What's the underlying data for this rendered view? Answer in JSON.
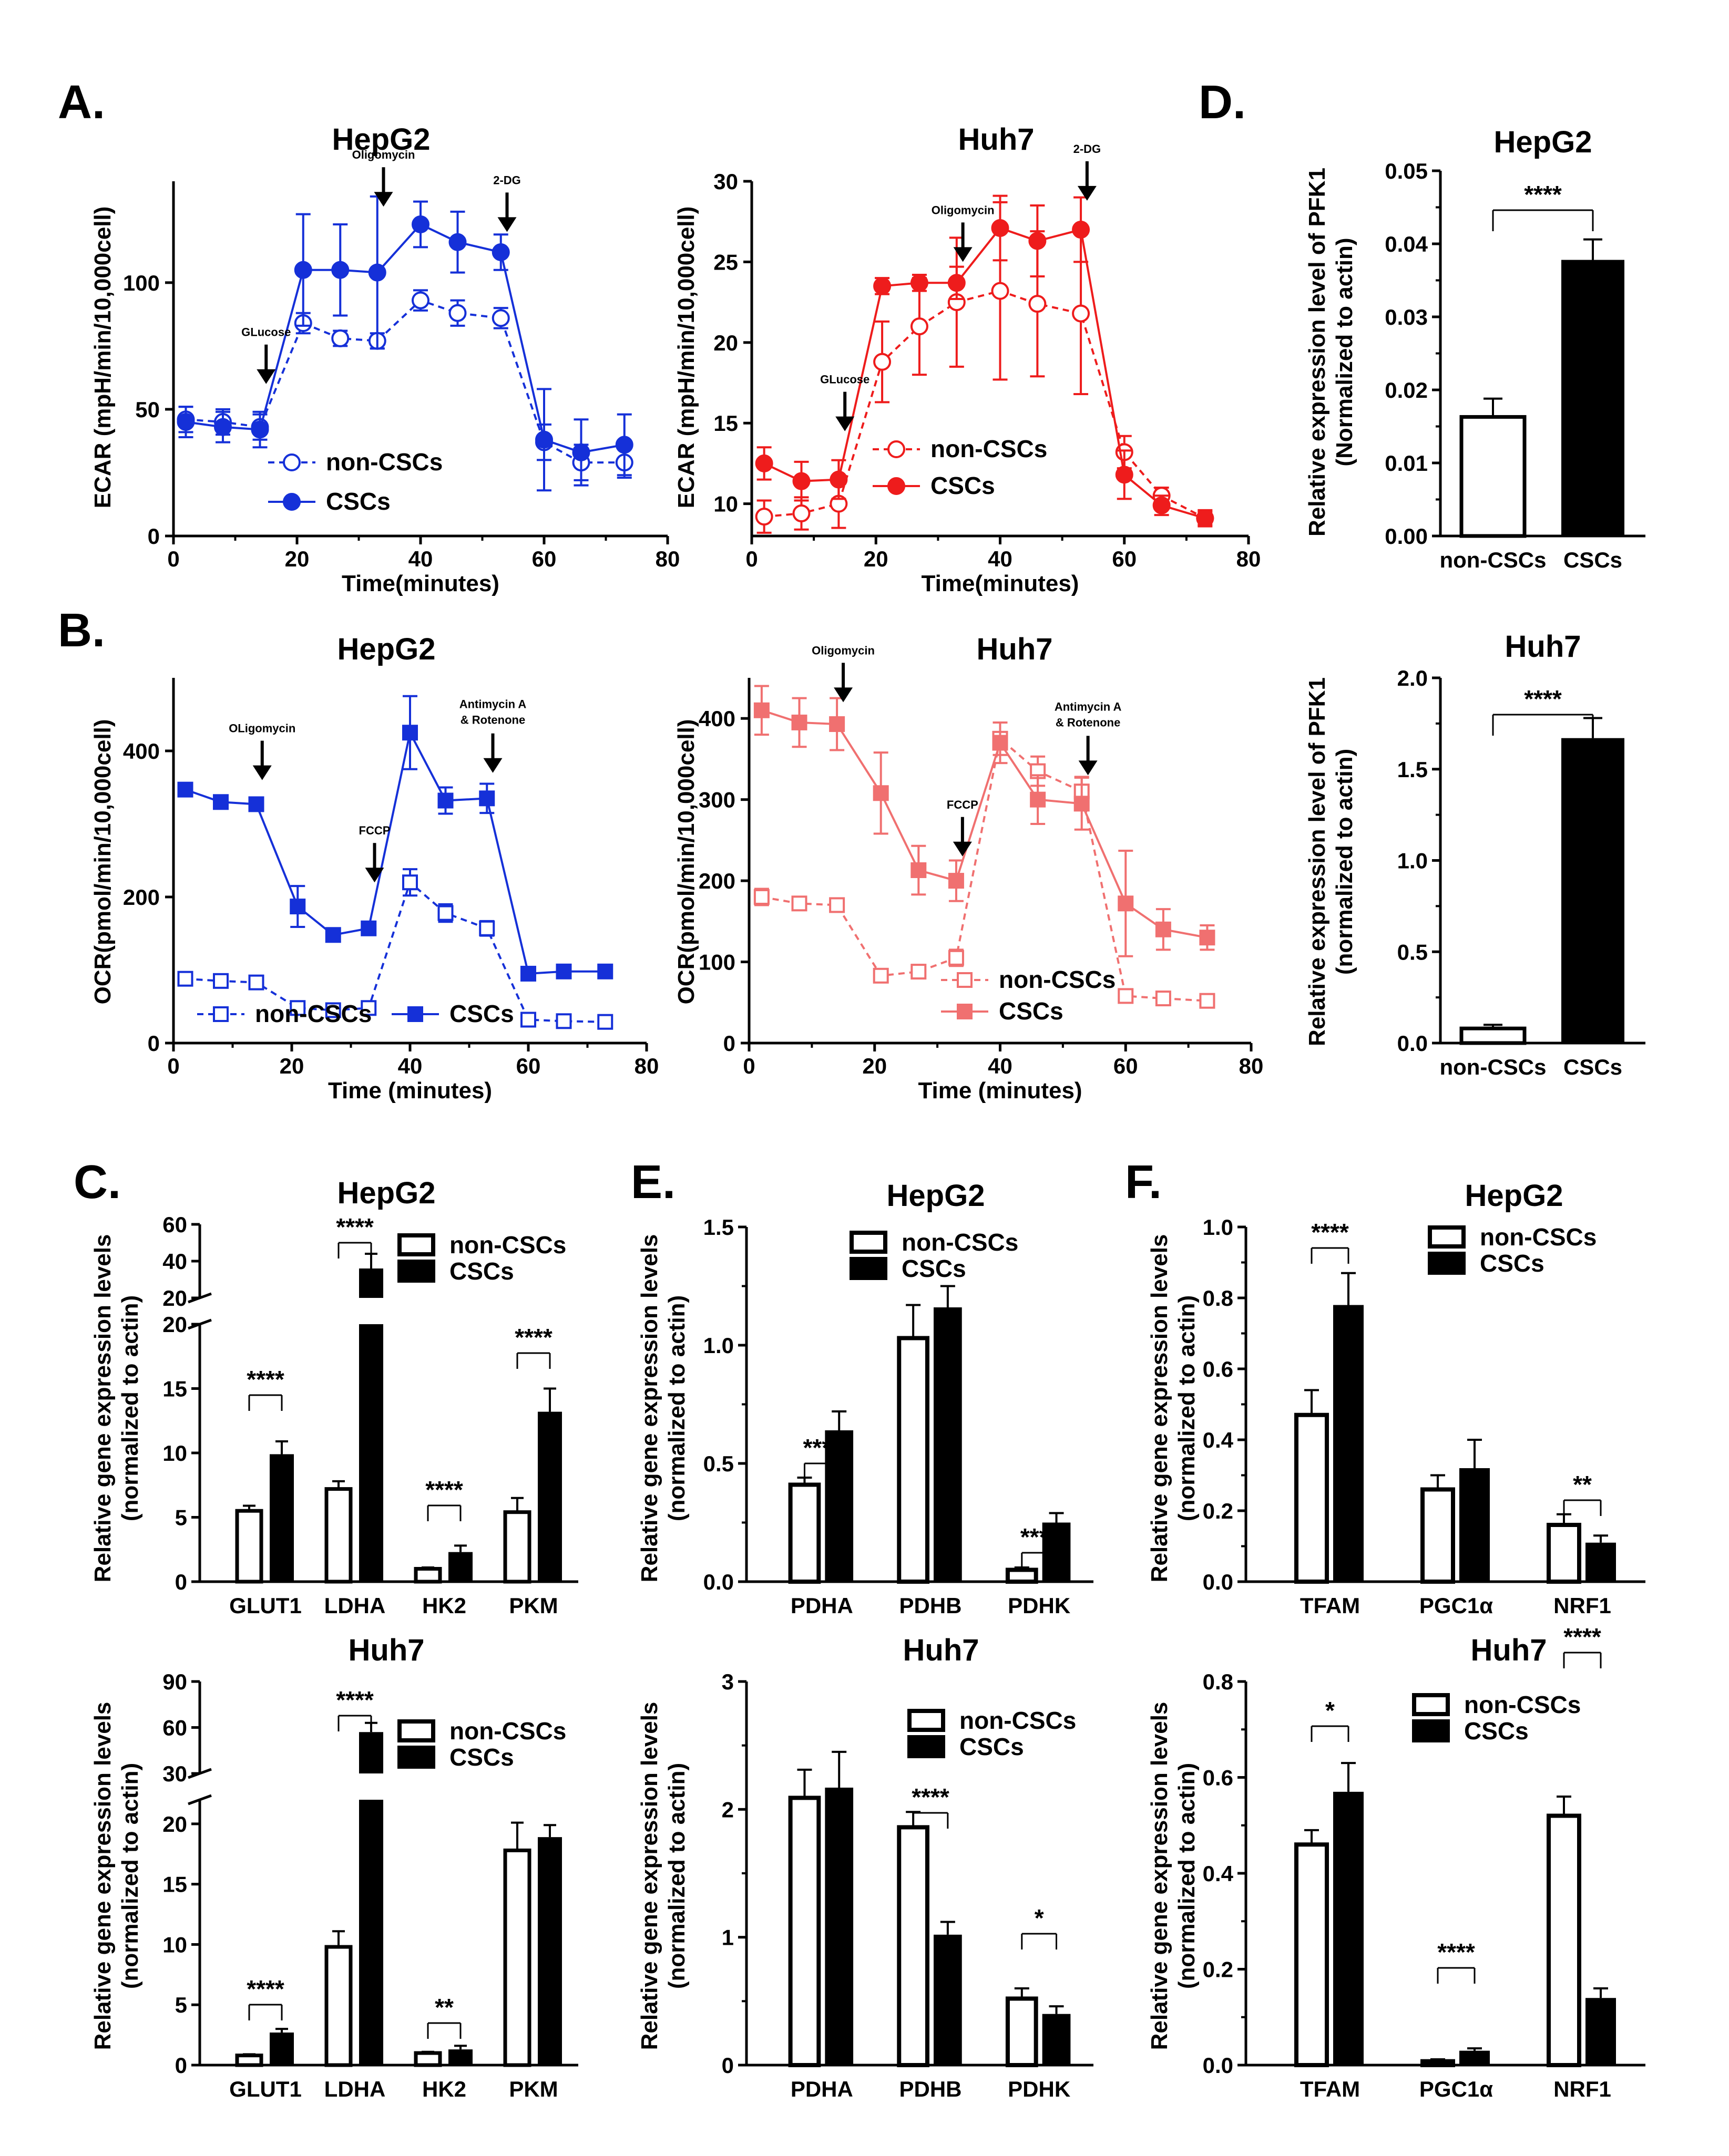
{
  "figure_letters": {
    "A": "A.",
    "B": "B.",
    "C": "C.",
    "D": "D.",
    "E": "E.",
    "F": "F."
  },
  "colors": {
    "blue": "#1530d8",
    "red": "#ee1c1c",
    "light_red": "#f07070",
    "black": "#000000"
  },
  "chart_data": [
    {
      "id": "A1",
      "type": "line",
      "title": "HepG2",
      "xlabel": "Time(minutes)",
      "ylabel": "ECAR (mpH/min/10,000cell)",
      "xlim": [
        0,
        80
      ],
      "ylim": [
        0,
        140
      ],
      "xticks": [
        "0",
        "20",
        "40",
        "60",
        "80"
      ],
      "yticks": [
        "0",
        "50",
        "100"
      ],
      "x": [
        2,
        8,
        14,
        21,
        27,
        33,
        40,
        46,
        53,
        60,
        66,
        73
      ],
      "series": [
        {
          "name": "non-CSCs",
          "values": [
            46,
            45,
            43,
            84,
            78,
            77,
            93,
            88,
            86,
            37,
            29,
            29
          ],
          "errors": [
            5,
            5,
            5,
            4,
            3,
            3,
            4,
            5,
            4,
            7,
            7,
            6
          ]
        },
        {
          "name": "CSCs",
          "values": [
            45,
            43,
            42,
            105,
            105,
            104,
            123,
            116,
            112,
            38,
            33,
            36
          ],
          "errors": [
            6,
            6,
            7,
            22,
            18,
            30,
            9,
            12,
            7,
            20,
            13,
            12
          ]
        }
      ],
      "legend": [
        "non-CSCs",
        "CSCs"
      ],
      "annotations": [
        {
          "label": "GLucose",
          "x": 15
        },
        {
          "label": "Oligomycin",
          "x": 34
        },
        {
          "label": "2-DG",
          "x": 54
        }
      ]
    },
    {
      "id": "A2",
      "type": "line",
      "title": "Huh7",
      "xlabel": "Time(minutes)",
      "ylabel": "ECAR (mpH/min/10,000cell)",
      "xlim": [
        0,
        80
      ],
      "ylim": [
        8,
        30
      ],
      "xticks": [
        "0",
        "20",
        "40",
        "60",
        "80"
      ],
      "yticks": [
        "10",
        "15",
        "20",
        "25",
        "30"
      ],
      "x": [
        2,
        8,
        14,
        21,
        27,
        33,
        40,
        46,
        53,
        60,
        66,
        73
      ],
      "series": [
        {
          "name": "non-CSCs",
          "values": [
            9.2,
            9.4,
            10,
            18.8,
            21,
            22.5,
            23.2,
            22.4,
            21.8,
            13.2,
            10.5,
            9.1
          ],
          "errors": [
            1.0,
            1.0,
            1.5,
            2.5,
            3.0,
            4.0,
            5.5,
            4.5,
            5.0,
            1.0,
            0.5,
            0.5
          ]
        },
        {
          "name": "CSCs",
          "values": [
            12.5,
            11.4,
            11.5,
            23.5,
            23.7,
            23.7,
            27.1,
            26.3,
            27.0,
            11.8,
            9.9,
            9.1
          ],
          "errors": [
            1.0,
            1.2,
            1.2,
            0.5,
            0.5,
            1.0,
            2.0,
            2.2,
            2.0,
            1.5,
            0.6,
            0.4
          ]
        }
      ],
      "legend": [
        "non-CSCs",
        "CSCs"
      ],
      "annotations": [
        {
          "label": "GLucose",
          "x": 15
        },
        {
          "label": "Oligomycin",
          "x": 34
        },
        {
          "label": "2-DG",
          "x": 54
        }
      ]
    },
    {
      "id": "B1",
      "type": "line",
      "title": "HepG2",
      "xlabel": "Time (minutes)",
      "ylabel": "OCR(pmol/min/10,000cell)",
      "xlim": [
        0,
        80
      ],
      "ylim": [
        0,
        500
      ],
      "xticks": [
        "0",
        "20",
        "40",
        "60",
        "80"
      ],
      "yticks": [
        "0",
        "200",
        "400"
      ],
      "x": [
        2,
        8,
        14,
        21,
        27,
        33,
        40,
        46,
        53,
        60,
        66,
        73
      ],
      "series": [
        {
          "name": "non-CSCs",
          "values": [
            88,
            85,
            83,
            48,
            45,
            48,
            220,
            178,
            157,
            32,
            30,
            29
          ],
          "errors": [
            4,
            4,
            4,
            8,
            6,
            8,
            18,
            12,
            10,
            5,
            4,
            4
          ]
        },
        {
          "name": "CSCs",
          "values": [
            347,
            330,
            327,
            187,
            148,
            157,
            425,
            332,
            335,
            95,
            98,
            98
          ],
          "errors": [
            5,
            5,
            5,
            28,
            8,
            6,
            50,
            18,
            20,
            5,
            5,
            5
          ]
        }
      ],
      "legend": [
        "non-CSCs",
        "CSCs"
      ],
      "annotations": [
        {
          "label": "OLigomycin",
          "x": 15
        },
        {
          "label": "FCCP",
          "x": 34
        },
        {
          "label": "Antimycin A",
          "label2": "& Rotenone",
          "x": 54
        }
      ]
    },
    {
      "id": "B2",
      "type": "line",
      "title": "Huh7",
      "xlabel": "Time (minutes)",
      "ylabel": "OCR(pmol/min/10,000cell)",
      "xlim": [
        0,
        80
      ],
      "ylim": [
        0,
        450
      ],
      "xticks": [
        "0",
        "20",
        "40",
        "60",
        "80"
      ],
      "yticks": [
        "0",
        "100",
        "200",
        "300",
        "400"
      ],
      "x": [
        2,
        8,
        14,
        21,
        27,
        33,
        40,
        46,
        53,
        60,
        66,
        73
      ],
      "series": [
        {
          "name": "non-CSCs",
          "values": [
            180,
            172,
            170,
            83,
            88,
            105,
            375,
            335,
            310,
            58,
            55,
            52
          ],
          "errors": [
            10,
            8,
            8,
            8,
            8,
            10,
            20,
            18,
            18,
            5,
            5,
            5
          ]
        },
        {
          "name": "CSCs",
          "values": [
            410,
            395,
            393,
            308,
            213,
            200,
            370,
            300,
            295,
            172,
            140,
            130
          ],
          "errors": [
            30,
            30,
            32,
            50,
            30,
            25,
            25,
            30,
            32,
            65,
            25,
            15
          ]
        }
      ],
      "legend": [
        "non-CSCs",
        "CSCs"
      ],
      "annotations": [
        {
          "label": "Oligomycin",
          "x": 15
        },
        {
          "label": "FCCP",
          "x": 34
        },
        {
          "label": "Antimycin A",
          "label2": "& Rotenone",
          "x": 54
        }
      ]
    },
    {
      "id": "C1",
      "type": "bar",
      "title": "HepG2",
      "ylabel1": "Relative gene expression levels",
      "ylabel2": "(normalized to actin)",
      "categories": [
        "GLUT1",
        "LDHA",
        "HK2",
        "PKM"
      ],
      "series": [
        {
          "name": "non-CSCs",
          "values": [
            5.5,
            7.2,
            1.0,
            5.4
          ],
          "errors": [
            0.4,
            0.6,
            0.1,
            1.1
          ]
        },
        {
          "name": "CSCs",
          "values": [
            9.9,
            36,
            2.3,
            13.2
          ],
          "errors": [
            1.0,
            8,
            0.5,
            1.8
          ]
        }
      ],
      "ylim": [
        0,
        60
      ],
      "axis_break": [
        20,
        20
      ],
      "yticks": [
        "0",
        "5",
        "10",
        "15",
        "20",
        "20",
        "40",
        "60"
      ],
      "significance": [
        "****",
        "****",
        "****",
        "****"
      ],
      "legend": [
        "non-CSCs",
        "CSCs"
      ]
    },
    {
      "id": "C2",
      "type": "bar",
      "title": "Huh7",
      "ylabel1": "Relative gene expression levels",
      "ylabel2": "(normalized to actin)",
      "categories": [
        "GLUT1",
        "LDHA",
        "HK2",
        "PKM"
      ],
      "series": [
        {
          "name": "non-CSCs",
          "values": [
            0.8,
            9.8,
            1.0,
            17.8
          ],
          "errors": [
            0.1,
            1.3,
            0.1,
            2.3
          ]
        },
        {
          "name": "CSCs",
          "values": [
            2.7,
            57,
            1.3,
            18.9
          ],
          "errors": [
            0.3,
            6,
            0.3,
            1.0
          ]
        }
      ],
      "ylim": [
        0,
        90
      ],
      "axis_break": [
        22,
        30
      ],
      "yticks": [
        "0",
        "5",
        "10",
        "15",
        "20",
        "30",
        "60",
        "90"
      ],
      "significance": [
        "****",
        "****",
        "**",
        ""
      ],
      "legend": [
        "non-CSCs",
        "CSCs"
      ]
    },
    {
      "id": "D1",
      "type": "bar",
      "title": "HepG2",
      "ylabel1": "Relative expression level of PFK1",
      "ylabel2": "(Normalized to actin)",
      "categories": [
        "non-CSCs",
        "CSCs"
      ],
      "values": [
        0.0163,
        0.0378
      ],
      "errors": [
        0.0025,
        0.0028
      ],
      "ylim": [
        0,
        0.05
      ],
      "yticks": [
        "0.00",
        "0.01",
        "0.02",
        "0.03",
        "0.04",
        "0.05"
      ],
      "significance": [
        "****"
      ]
    },
    {
      "id": "D2",
      "type": "bar",
      "title": "Huh7",
      "ylabel1": "Relative expression level of PFK1",
      "ylabel2": "(normalized to actin)",
      "categories": [
        "non-CSCs",
        "CSCs"
      ],
      "values": [
        0.08,
        1.67
      ],
      "errors": [
        0.02,
        0.11
      ],
      "ylim": [
        0,
        2.0
      ],
      "yticks": [
        "0.0",
        "0.5",
        "1.0",
        "1.5",
        "2.0"
      ],
      "significance": [
        "****"
      ]
    },
    {
      "id": "E1",
      "type": "bar",
      "title": "HepG2",
      "ylabel1": "Relative gene expression levels",
      "ylabel2": "(normalized to actin)",
      "categories": [
        "PDHA",
        "PDHB",
        "PDHK"
      ],
      "series": [
        {
          "name": "non-CSCs",
          "values": [
            0.41,
            1.03,
            0.05
          ],
          "errors": [
            0.03,
            0.14,
            0.01
          ]
        },
        {
          "name": "CSCs",
          "values": [
            0.64,
            1.16,
            0.25
          ],
          "errors": [
            0.08,
            0.09,
            0.04
          ]
        }
      ],
      "ylim": [
        0,
        1.5
      ],
      "yticks": [
        "0.0",
        "0.5",
        "1.0",
        "1.5"
      ],
      "significance": [
        "****",
        "",
        "****"
      ],
      "legend": [
        "non-CSCs",
        "CSCs"
      ]
    },
    {
      "id": "E2",
      "type": "bar",
      "title": "Huh7",
      "ylabel1": "Relative gene expression levels",
      "ylabel2": "(normalized to actin)",
      "categories": [
        "PDHA",
        "PDHB",
        "PDHK"
      ],
      "series": [
        {
          "name": "non-CSCs",
          "values": [
            2.09,
            1.86,
            0.52
          ],
          "errors": [
            0.22,
            0.12,
            0.08
          ]
        },
        {
          "name": "CSCs",
          "values": [
            2.17,
            1.02,
            0.4
          ],
          "errors": [
            0.28,
            0.1,
            0.06
          ]
        }
      ],
      "ylim": [
        0,
        3
      ],
      "yticks": [
        "0",
        "1",
        "2",
        "3"
      ],
      "significance": [
        "",
        "****",
        "*"
      ],
      "legend": [
        "non-CSCs",
        "CSCs"
      ]
    },
    {
      "id": "F1",
      "type": "bar",
      "title": "HepG2",
      "ylabel1": "Relative gene expression levels",
      "ylabel2": "(normalized to actin)",
      "categories": [
        "TFAM",
        "PGC1α",
        "NRF1"
      ],
      "series": [
        {
          "name": "non-CSCs",
          "values": [
            0.47,
            0.26,
            0.16
          ],
          "errors": [
            0.07,
            0.04,
            0.03
          ]
        },
        {
          "name": "CSCs",
          "values": [
            0.78,
            0.32,
            0.11
          ],
          "errors": [
            0.09,
            0.08,
            0.02
          ]
        }
      ],
      "ylim": [
        0,
        1.0
      ],
      "yticks": [
        "0.0",
        "0.2",
        "0.4",
        "0.6",
        "0.8",
        "1.0"
      ],
      "significance": [
        "****",
        "",
        "**"
      ],
      "legend": [
        "non-CSCs",
        "CSCs"
      ]
    },
    {
      "id": "F2",
      "type": "bar",
      "title": "Huh7",
      "ylabel1": "Relative gene expression levels",
      "ylabel2": "(normalized to actin)",
      "categories": [
        "TFAM",
        "PGC1α",
        "NRF1"
      ],
      "series": [
        {
          "name": "non-CSCs",
          "values": [
            0.46,
            0.008,
            0.52
          ],
          "errors": [
            0.03,
            0.004,
            0.04
          ]
        },
        {
          "name": "CSCs",
          "values": [
            0.57,
            0.03,
            0.14
          ],
          "errors": [
            0.06,
            0.005,
            0.02
          ]
        }
      ],
      "ylim": [
        0,
        0.8
      ],
      "yticks": [
        "0.0",
        "0.2",
        "0.4",
        "0.6",
        "0.8"
      ],
      "significance": [
        "*",
        "****",
        "****"
      ],
      "legend": [
        "non-CSCs",
        "CSCs"
      ]
    }
  ]
}
